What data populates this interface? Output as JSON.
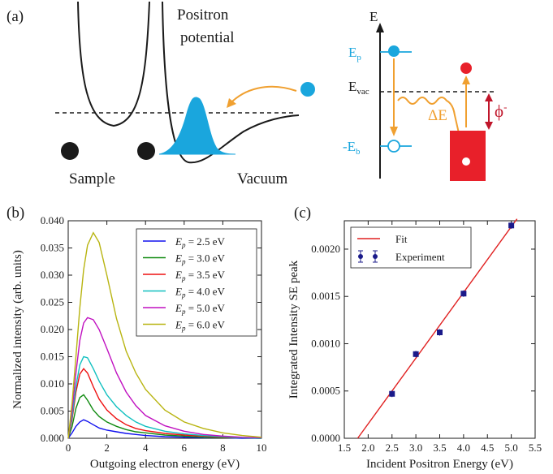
{
  "colors": {
    "cyan": "#1aa6dd",
    "orange": "#f0a030",
    "red": "#e8202a",
    "dark_red": "#c0152a",
    "black": "#1a1a1a",
    "fit_red": "#e02020",
    "marker_blue": "#1a1a8a"
  },
  "panel_a": {
    "label": "(a)",
    "potential_label_line1": "Positron",
    "potential_label_line2": "potential",
    "sample_label": "Sample",
    "vacuum_label": "Vacuum",
    "energy_axis_label": "E",
    "ep_label": "E",
    "ep_sub": "p",
    "evac_label": "E",
    "evac_sub": "vac",
    "eb_label": "-E",
    "eb_sub": "b",
    "delta_e_label": "ΔE",
    "phi_label": "ϕ",
    "phi_sup": "-"
  },
  "chart_data": [
    {
      "panel": "(b)",
      "type": "line",
      "xlabel": "Outgoing electron energy (eV)",
      "ylabel": "Normalized intensity (arb. units)",
      "xlim": [
        0,
        10
      ],
      "ylim": [
        0,
        0.04
      ],
      "xticks": [
        "0",
        "2",
        "4",
        "6",
        "8",
        "10"
      ],
      "yticks": [
        "0.000",
        "0.005",
        "0.010",
        "0.015",
        "0.020",
        "0.025",
        "0.030",
        "0.035",
        "0.040"
      ],
      "legend_position": "top-right",
      "series": [
        {
          "name": "E_p = 2.5 eV",
          "label_main": "E",
          "label_sub": "p",
          "label_rest": " = 2.5 eV",
          "color": "#1010ee",
          "x": [
            0,
            0.2,
            0.4,
            0.6,
            0.8,
            1.0,
            1.3,
            1.6,
            2.0,
            2.5,
            3.0,
            3.5,
            4.0,
            5.0,
            6.0,
            7.0,
            8.0,
            9.0,
            10.0
          ],
          "y": [
            0.0,
            0.001,
            0.0022,
            0.003,
            0.0034,
            0.0031,
            0.0025,
            0.0019,
            0.0015,
            0.0012,
            0.0009,
            0.0007,
            0.0005,
            0.0003,
            0.0002,
            0.0001,
            0.0001,
            0.0,
            0.0
          ]
        },
        {
          "name": "E_p = 3.0 eV",
          "label_main": "E",
          "label_sub": "p",
          "label_rest": " = 3.0 eV",
          "color": "#108a10",
          "x": [
            0,
            0.2,
            0.4,
            0.6,
            0.8,
            1.0,
            1.3,
            1.6,
            2.0,
            2.5,
            3.0,
            3.5,
            4.0,
            5.0,
            6.0,
            7.0,
            8.0,
            9.0,
            10.0
          ],
          "y": [
            0.0,
            0.0022,
            0.0055,
            0.0075,
            0.008,
            0.007,
            0.0052,
            0.004,
            0.003,
            0.0022,
            0.0016,
            0.0012,
            0.001,
            0.0006,
            0.0004,
            0.0002,
            0.0001,
            0.0001,
            0.0
          ]
        },
        {
          "name": "E_p = 3.5 eV",
          "label_main": "E",
          "label_sub": "p",
          "label_rest": " = 3.5 eV",
          "color": "#ee1010",
          "x": [
            0,
            0.2,
            0.4,
            0.6,
            0.8,
            1.0,
            1.3,
            1.6,
            2.0,
            2.5,
            3.0,
            3.5,
            4.0,
            5.0,
            6.0,
            7.0,
            8.0,
            9.0,
            10.0
          ],
          "y": [
            0.0,
            0.0035,
            0.0085,
            0.0118,
            0.0128,
            0.012,
            0.0095,
            0.0072,
            0.0052,
            0.0036,
            0.0025,
            0.0018,
            0.0014,
            0.0009,
            0.0006,
            0.0004,
            0.0002,
            0.0001,
            0.0
          ]
        },
        {
          "name": "E_p = 4.0 eV",
          "label_main": "E",
          "label_sub": "p",
          "label_rest": " = 4.0 eV",
          "color": "#10c0c0",
          "x": [
            0,
            0.2,
            0.4,
            0.6,
            0.8,
            1.0,
            1.3,
            1.6,
            2.0,
            2.5,
            3.0,
            3.5,
            4.0,
            5.0,
            6.0,
            7.0,
            8.0,
            9.0,
            10.0
          ],
          "y": [
            0.0,
            0.004,
            0.0095,
            0.0135,
            0.015,
            0.0148,
            0.0128,
            0.0105,
            0.008,
            0.0058,
            0.0042,
            0.003,
            0.0022,
            0.0013,
            0.0008,
            0.0005,
            0.0003,
            0.0001,
            0.0
          ]
        },
        {
          "name": "E_p = 5.0 eV",
          "label_main": "E",
          "label_sub": "p",
          "label_rest": " = 5.0 eV",
          "color": "#c010c0",
          "x": [
            0,
            0.2,
            0.4,
            0.6,
            0.8,
            1.0,
            1.3,
            1.6,
            2.0,
            2.5,
            3.0,
            3.5,
            4.0,
            5.0,
            6.0,
            7.0,
            8.0,
            9.0,
            10.0
          ],
          "y": [
            0.0,
            0.005,
            0.012,
            0.018,
            0.0212,
            0.0222,
            0.0218,
            0.02,
            0.0165,
            0.012,
            0.0085,
            0.006,
            0.0042,
            0.0023,
            0.0013,
            0.0007,
            0.0004,
            0.0002,
            0.0001
          ]
        },
        {
          "name": "E_p = 6.0 eV",
          "label_main": "E",
          "label_sub": "p",
          "label_rest": " = 6.0 eV",
          "color": "#b8b410",
          "x": [
            0,
            0.2,
            0.4,
            0.6,
            0.8,
            1.0,
            1.3,
            1.6,
            2.0,
            2.5,
            3.0,
            3.5,
            4.0,
            5.0,
            6.0,
            7.0,
            8.0,
            9.0,
            10.0
          ],
          "y": [
            0.0,
            0.0065,
            0.015,
            0.024,
            0.031,
            0.0355,
            0.0378,
            0.036,
            0.03,
            0.022,
            0.016,
            0.012,
            0.009,
            0.0052,
            0.003,
            0.0018,
            0.001,
            0.0005,
            0.0002
          ]
        }
      ]
    },
    {
      "panel": "(c)",
      "type": "scatter",
      "xlabel": "Incident Positron Energy (eV)",
      "ylabel": "Integrated Intensity SE peak",
      "xlim": [
        1.5,
        5.5
      ],
      "ylim": [
        0,
        0.0023
      ],
      "xticks": [
        "1.5",
        "2.0",
        "2.5",
        "3.0",
        "3.5",
        "4.0",
        "4.5",
        "5.0",
        "5.5"
      ],
      "yticks": [
        "0.0000",
        "0.0005",
        "0.0010",
        "0.0015",
        "0.0020"
      ],
      "legend_position": "top-left",
      "fit": {
        "name": "Fit",
        "x": [
          1.78,
          5.12
        ],
        "y": [
          0.0,
          0.00232
        ]
      },
      "experiment": {
        "name": "Experiment",
        "x": [
          2.5,
          3.0,
          3.5,
          4.0,
          5.0
        ],
        "y": [
          0.00047,
          0.00089,
          0.00112,
          0.00153,
          0.00225
        ]
      }
    }
  ]
}
